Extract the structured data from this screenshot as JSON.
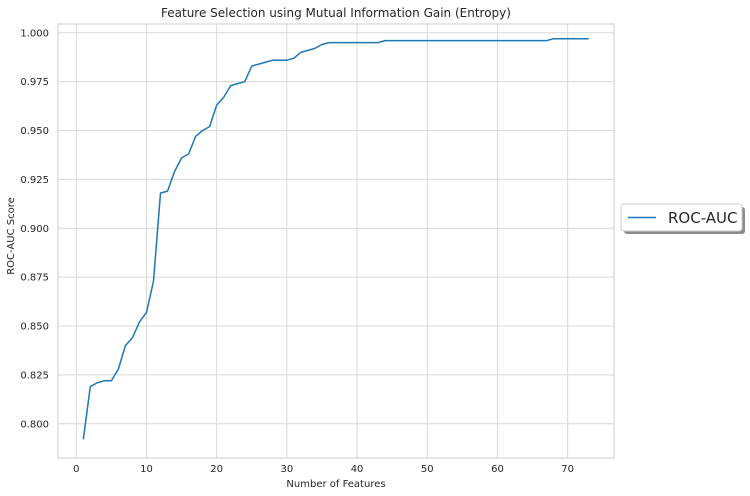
{
  "chart_data": {
    "type": "line",
    "title": "Feature Selection using Mutual Information Gain (Entropy)",
    "xlabel": "Number of Features",
    "ylabel": "ROC-AUC Score",
    "xlim": [
      -2.6,
      76.6
    ],
    "ylim": [
      0.7825,
      1.0045
    ],
    "xticks": [
      0,
      10,
      20,
      30,
      40,
      50,
      60,
      70
    ],
    "yticks": [
      0.8,
      0.825,
      0.85,
      0.875,
      0.9,
      0.925,
      0.95,
      0.975,
      1.0
    ],
    "xtick_labels": [
      "0",
      "10",
      "20",
      "30",
      "40",
      "50",
      "60",
      "70"
    ],
    "ytick_labels": [
      "0.800",
      "0.825",
      "0.850",
      "0.875",
      "0.900",
      "0.925",
      "0.950",
      "0.975",
      "1.000"
    ],
    "grid": true,
    "legend_position": "outside-right",
    "series": [
      {
        "name": "ROC-AUC",
        "color": "#1f77b4",
        "x": [
          1,
          2,
          3,
          4,
          5,
          6,
          7,
          8,
          9,
          10,
          11,
          12,
          13,
          14,
          15,
          16,
          17,
          18,
          19,
          20,
          21,
          22,
          23,
          24,
          25,
          26,
          27,
          28,
          29,
          30,
          31,
          32,
          33,
          34,
          35,
          36,
          37,
          38,
          39,
          40,
          41,
          42,
          43,
          44,
          45,
          46,
          47,
          48,
          49,
          50,
          51,
          52,
          53,
          54,
          55,
          56,
          57,
          58,
          59,
          60,
          61,
          62,
          63,
          64,
          65,
          66,
          67,
          68,
          69,
          70,
          71,
          72,
          73
        ],
        "y": [
          0.792,
          0.819,
          0.821,
          0.822,
          0.822,
          0.828,
          0.84,
          0.844,
          0.852,
          0.857,
          0.873,
          0.918,
          0.919,
          0.929,
          0.936,
          0.938,
          0.947,
          0.95,
          0.952,
          0.963,
          0.967,
          0.973,
          0.974,
          0.975,
          0.983,
          0.984,
          0.985,
          0.986,
          0.986,
          0.986,
          0.987,
          0.99,
          0.991,
          0.992,
          0.994,
          0.995,
          0.995,
          0.995,
          0.995,
          0.995,
          0.995,
          0.995,
          0.995,
          0.996,
          0.996,
          0.996,
          0.996,
          0.996,
          0.996,
          0.996,
          0.996,
          0.996,
          0.996,
          0.996,
          0.996,
          0.996,
          0.996,
          0.996,
          0.996,
          0.996,
          0.996,
          0.996,
          0.996,
          0.996,
          0.996,
          0.996,
          0.996,
          0.997,
          0.997,
          0.997,
          0.997,
          0.997,
          0.997
        ]
      }
    ]
  }
}
